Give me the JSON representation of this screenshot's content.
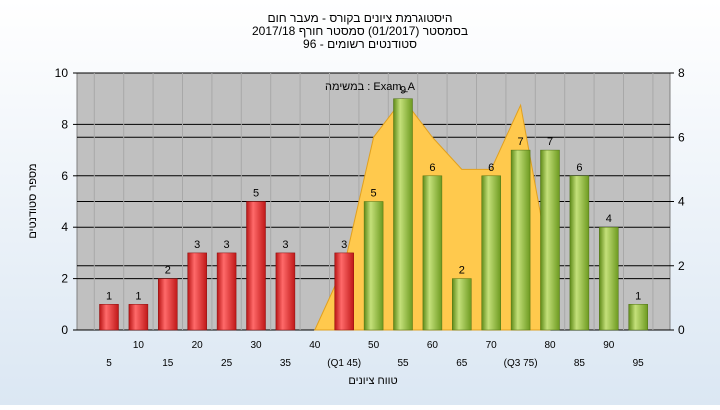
{
  "chart_data": {
    "type": "bar",
    "title": "היסטוגרמת ציונים בקורס - מעבר חום",
    "subtitle": "בסמסטר  (01/2017)  סמסטר חורף 2017/18",
    "subtitle2": "סטודנטים רשומים - 96",
    "xlabel": "טווח ציונים",
    "ylabel": "מספר סטודנטים",
    "annotation": "במשימה : Exam_A",
    "ylim": [
      0,
      10
    ],
    "y2lim": [
      0,
      8
    ],
    "grid": true,
    "y_ticks": [
      "0",
      "2",
      "4",
      "6",
      "8",
      "10"
    ],
    "y2_ticks": [
      "0",
      "2",
      "4",
      "6",
      "8"
    ],
    "x_tick_row1": [
      "10",
      "20",
      "30",
      "40",
      "50",
      "60",
      "70",
      "80",
      "90"
    ],
    "x_tick_row2": [
      "5",
      "15",
      "25",
      "35",
      "(Q1 45)",
      "55",
      "65",
      "(Q3 75)",
      "85",
      "95"
    ],
    "categories": [
      "5",
      "10",
      "15",
      "20",
      "25",
      "30",
      "35",
      "40",
      "45",
      "50",
      "55",
      "60",
      "65",
      "70",
      "75",
      "80",
      "85",
      "90",
      "95"
    ],
    "values": [
      1,
      1,
      2,
      3,
      3,
      5,
      3,
      0,
      3,
      5,
      9,
      6,
      2,
      6,
      7,
      7,
      6,
      4,
      1
    ],
    "bar_labels": [
      "1",
      "1",
      "2",
      "3",
      "3",
      "5",
      "3",
      "",
      "3",
      "5",
      "9",
      "6",
      "2",
      "6",
      "7",
      "7",
      "6",
      "4",
      "1"
    ],
    "area_series": {
      "x": [
        "40",
        "45",
        "50",
        "55",
        "60",
        "65",
        "70",
        "75",
        "80"
      ],
      "values": [
        0,
        2,
        6,
        7.2,
        6,
        5,
        5,
        7,
        2
      ]
    },
    "colors": {
      "low_bar": "#e03030",
      "high_bar": "#8ab834",
      "area": "#ffc94d",
      "plot_bg": "#c0c0c0"
    }
  }
}
